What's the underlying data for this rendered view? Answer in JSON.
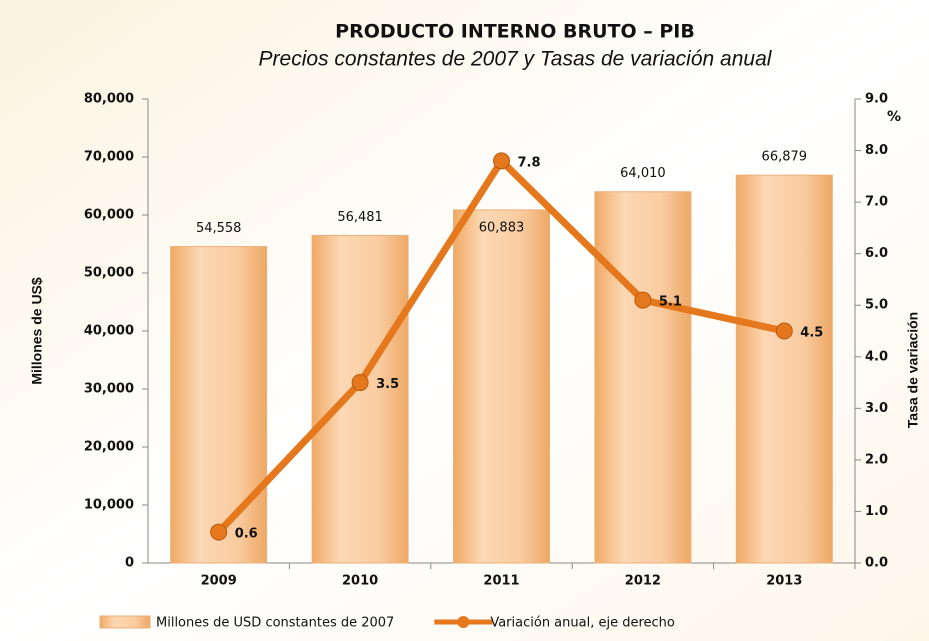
{
  "chart_data": {
    "type": "bar_line",
    "title": "PRODUCTO INTERNO BRUTO – PIB",
    "subtitle": "Precios  constantes de 2007 y Tasas de variación anual",
    "y_label": "Millones de US$",
    "y2_label": "Tasa de variación",
    "y2_unit": "%",
    "categories": [
      "2009",
      "2010",
      "2011",
      "2012",
      "2013"
    ],
    "series": [
      {
        "name": "Millones de USD constantes de 2007",
        "type": "bar",
        "color": "#f8c596",
        "values": [
          54558,
          56481,
          60883,
          64010,
          66879
        ],
        "value_labels": [
          "54,558",
          "56,481",
          "60,883",
          "64,010",
          "66,879"
        ]
      },
      {
        "name": "Variación anual, eje derecho",
        "type": "line",
        "axis": "y2",
        "color": "#e5781c",
        "values": [
          0.6,
          3.5,
          7.8,
          5.1,
          4.5
        ]
      }
    ],
    "ylim": [
      0,
      80000
    ],
    "yticks": [
      {
        "value": 0,
        "label": "0"
      },
      {
        "value": 10000,
        "label": "10,000"
      },
      {
        "value": 20000,
        "label": "20,000"
      },
      {
        "value": 30000,
        "label": "30,000"
      },
      {
        "value": 40000,
        "label": "40,000"
      },
      {
        "value": 50000,
        "label": "50,000"
      },
      {
        "value": 60000,
        "label": "60,000"
      },
      {
        "value": 70000,
        "label": "70,000"
      },
      {
        "value": 80000,
        "label": "80,000"
      }
    ],
    "y2lim": [
      0,
      9
    ],
    "y2ticks": [
      {
        "value": 0,
        "label": "0.0"
      },
      {
        "value": 1,
        "label": "1.0"
      },
      {
        "value": 2,
        "label": "2.0"
      },
      {
        "value": 3,
        "label": "3.0"
      },
      {
        "value": 4,
        "label": "4.0"
      },
      {
        "value": 5,
        "label": "5.0"
      },
      {
        "value": 6,
        "label": "6.0"
      },
      {
        "value": 7,
        "label": "7.0"
      },
      {
        "value": 8,
        "label": "8.0"
      },
      {
        "value": 9,
        "label": "9.0"
      }
    ],
    "grid": false,
    "legend": "bottom"
  }
}
